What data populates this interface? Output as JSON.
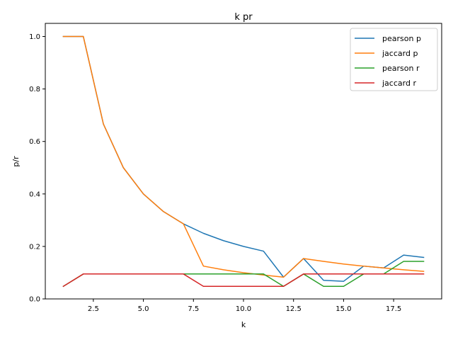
{
  "chart_data": {
    "type": "line",
    "title": "k pr",
    "xlabel": "k",
    "ylabel": "p/r",
    "xlim": [
      0.1,
      19.9
    ],
    "ylim": [
      0.0,
      1.05
    ],
    "xticks": [
      2.5,
      5.0,
      7.5,
      10.0,
      12.5,
      15.0,
      17.5
    ],
    "xtick_labels": [
      "2.5",
      "5.0",
      "7.5",
      "10.0",
      "12.5",
      "15.0",
      "17.5"
    ],
    "yticks": [
      0.0,
      0.2,
      0.4,
      0.6,
      0.8,
      1.0
    ],
    "ytick_labels": [
      "0.0",
      "0.2",
      "0.4",
      "0.6",
      "0.8",
      "1.0"
    ],
    "grid": false,
    "legend_position": "top-right",
    "x": [
      1,
      2,
      3,
      4,
      5,
      6,
      7,
      8,
      9,
      10,
      11,
      12,
      13,
      14,
      15,
      16,
      17,
      18,
      19
    ],
    "series": [
      {
        "name": "pearson p",
        "color": "#1f77b4",
        "values": [
          1.0,
          1.0,
          0.667,
          0.5,
          0.4,
          0.333,
          0.286,
          0.25,
          0.222,
          0.2,
          0.182,
          0.083,
          0.154,
          0.071,
          0.067,
          0.125,
          0.118,
          0.167,
          0.158
        ]
      },
      {
        "name": "jaccard p",
        "color": "#ff7f0e",
        "values": [
          1.0,
          1.0,
          0.667,
          0.5,
          0.4,
          0.333,
          0.286,
          0.125,
          0.111,
          0.1,
          0.091,
          0.083,
          0.154,
          0.143,
          0.133,
          0.125,
          0.118,
          0.111,
          0.105
        ]
      },
      {
        "name": "pearson r",
        "color": "#2ca02c",
        "values": [
          0.048,
          0.095,
          0.095,
          0.095,
          0.095,
          0.095,
          0.095,
          0.095,
          0.095,
          0.095,
          0.095,
          0.048,
          0.095,
          0.048,
          0.048,
          0.095,
          0.095,
          0.143,
          0.143
        ]
      },
      {
        "name": "jaccard r",
        "color": "#d62728",
        "values": [
          0.048,
          0.095,
          0.095,
          0.095,
          0.095,
          0.095,
          0.095,
          0.048,
          0.048,
          0.048,
          0.048,
          0.048,
          0.095,
          0.095,
          0.095,
          0.095,
          0.095,
          0.095,
          0.095
        ]
      }
    ]
  }
}
